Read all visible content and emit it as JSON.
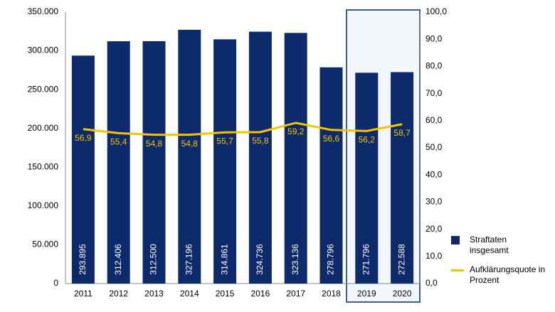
{
  "chart_data": {
    "type": "bar",
    "categories": [
      "2011",
      "2012",
      "2013",
      "2014",
      "2015",
      "2016",
      "2017",
      "2018",
      "2019",
      "2020"
    ],
    "series": [
      {
        "name": "Straftaten insgesamt",
        "color": "#0d2a6b",
        "type": "bar",
        "values": [
          293895,
          312406,
          312500,
          327196,
          314861,
          324736,
          323136,
          278796,
          271796,
          272588
        ],
        "value_labels": [
          "293.895",
          "312.406",
          "312.500",
          "327.196",
          "314.861",
          "324.736",
          "323.136",
          "278.796",
          "271.796",
          "272.588"
        ]
      },
      {
        "name": "Aufklärungsquote in Prozent",
        "color": "#f5c400",
        "type": "line",
        "axis": "y2",
        "values": [
          56.9,
          55.4,
          54.8,
          54.8,
          55.7,
          55.8,
          59.2,
          56.6,
          56.2,
          58.7
        ],
        "value_labels": [
          "56,9",
          "55,4",
          "54,8",
          "54,8",
          "55,7",
          "55,8",
          "59,2",
          "56,6",
          "56,2",
          "58,7"
        ]
      }
    ],
    "ylim": [
      0,
      350000
    ],
    "yticks": [
      0,
      {
        "value": 50000,
        "label": "50.000"
      },
      {
        "value": 100000,
        "label": "100.000"
      },
      {
        "value": 150000,
        "label": "150.000"
      },
      {
        "value": 200000,
        "label": "200.000"
      },
      {
        "value": 250000,
        "label": "250.000"
      },
      {
        "value": 300000,
        "label": "300.000"
      },
      {
        "value": 350000,
        "label": "350.000"
      }
    ],
    "y2lim": [
      0,
      100
    ],
    "y2ticks": [
      {
        "value": 0,
        "label": "0,0"
      },
      {
        "value": 10,
        "label": "10,0"
      },
      {
        "value": 20,
        "label": "20,0"
      },
      {
        "value": 30,
        "label": "30,0"
      },
      {
        "value": 40,
        "label": "40,0"
      },
      {
        "value": 50,
        "label": "50,0"
      },
      {
        "value": 60,
        "label": "60,0"
      },
      {
        "value": 70,
        "label": "70,0"
      },
      {
        "value": 80,
        "label": "80,0"
      },
      {
        "value": 90,
        "label": "90,0"
      },
      {
        "value": 100,
        "label": "100,0"
      }
    ],
    "grid": false
  }
}
